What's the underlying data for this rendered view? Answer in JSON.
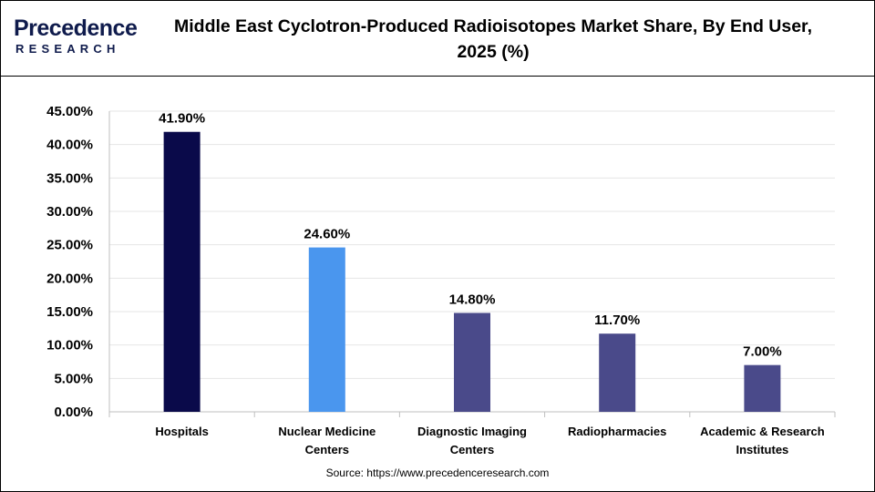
{
  "brand": {
    "name_main": "Precedence",
    "name_sub": "RESEARCH"
  },
  "title": "Middle East Cyclotron-Produced Radioisotopes Market Share, By End User, 2025 (%)",
  "source": "Source: https://www.precedenceresearch.com",
  "colors": {
    "hospitals": "#0a0a4a",
    "nuclear": "#4a96ee",
    "other": "#4a4a8a",
    "grid": "#e6e6e6",
    "axis": "#bfbfbf"
  },
  "chart_data": {
    "type": "bar",
    "categories": [
      "Hospitals",
      "Nuclear Medicine Centers",
      "Diagnostic Imaging Centers",
      "Radiopharmacies",
      "Academic & Research Institutes"
    ],
    "category_lines": [
      [
        "Hospitals"
      ],
      [
        "Nuclear Medicine",
        "Centers"
      ],
      [
        "Diagnostic Imaging",
        "Centers"
      ],
      [
        "Radiopharmacies"
      ],
      [
        "Academic & Research",
        "Institutes"
      ]
    ],
    "values": [
      41.9,
      24.6,
      14.8,
      11.7,
      7.0
    ],
    "data_labels": [
      "41.90%",
      "24.60%",
      "14.80%",
      "11.70%",
      "7.00%"
    ],
    "bar_colors": [
      "#0a0a4a",
      "#4a96ee",
      "#4a4a8a",
      "#4a4a8a",
      "#4a4a8a"
    ],
    "ylim": [
      0,
      45
    ],
    "yticks": [
      0,
      5,
      10,
      15,
      20,
      25,
      30,
      35,
      40,
      45
    ],
    "ytick_labels": [
      "0.00%",
      "5.00%",
      "10.00%",
      "15.00%",
      "20.00%",
      "25.00%",
      "30.00%",
      "35.00%",
      "40.00%",
      "45.00%"
    ],
    "grid": true,
    "xlabel": "",
    "ylabel": ""
  }
}
